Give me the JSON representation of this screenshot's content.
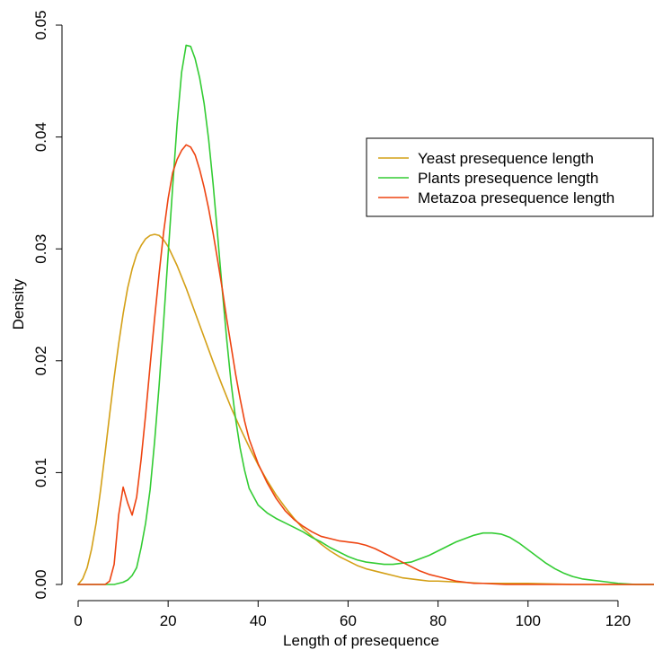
{
  "chart_data": {
    "type": "line",
    "title": "",
    "xlabel": "Length of presequence",
    "ylabel": "Density",
    "xlim": [
      0,
      128
    ],
    "ylim": [
      0,
      0.05
    ],
    "xticks": [
      "0",
      "20",
      "40",
      "60",
      "80",
      "100",
      "120"
    ],
    "yticks": [
      "0.00",
      "0.01",
      "0.02",
      "0.03",
      "0.04",
      "0.05"
    ],
    "grid": false,
    "legend_position": "top-right",
    "series": [
      {
        "name": "Yeast presequence length",
        "color": "#D4A017",
        "x": [
          0,
          1,
          2,
          3,
          4,
          5,
          6,
          7,
          8,
          9,
          10,
          11,
          12,
          13,
          14,
          15,
          16,
          17,
          18,
          19,
          20,
          22,
          24,
          26,
          28,
          30,
          32,
          34,
          36,
          38,
          40,
          42,
          44,
          46,
          48,
          50,
          52,
          54,
          56,
          58,
          60,
          62,
          64,
          66,
          68,
          70,
          72,
          74,
          76,
          78,
          80,
          85,
          90,
          95,
          100,
          110,
          120,
          128
        ],
        "y": [
          0.0,
          0.0005,
          0.0015,
          0.0032,
          0.0055,
          0.0085,
          0.0118,
          0.0152,
          0.0185,
          0.0215,
          0.0242,
          0.0265,
          0.0282,
          0.0295,
          0.0303,
          0.0309,
          0.0312,
          0.0313,
          0.0312,
          0.0308,
          0.0302,
          0.0285,
          0.0265,
          0.0243,
          0.0221,
          0.0199,
          0.0178,
          0.0158,
          0.014,
          0.0123,
          0.0107,
          0.0093,
          0.008,
          0.0069,
          0.0059,
          0.005,
          0.0043,
          0.0036,
          0.003,
          0.0025,
          0.0021,
          0.0017,
          0.0014,
          0.0012,
          0.001,
          0.0008,
          0.0006,
          0.0005,
          0.0004,
          0.0003,
          0.0003,
          0.0002,
          0.0001,
          0.0001,
          0.0001,
          0.0,
          0.0,
          0.0
        ]
      },
      {
        "name": "Plants presequence length",
        "color": "#33CC33",
        "x": [
          0,
          5,
          8,
          10,
          11,
          12,
          13,
          14,
          15,
          16,
          17,
          18,
          19,
          20,
          21,
          22,
          23,
          24,
          25,
          26,
          27,
          28,
          29,
          30,
          31,
          32,
          33,
          34,
          35,
          36,
          37,
          38,
          40,
          42,
          44,
          46,
          48,
          50,
          52,
          54,
          56,
          58,
          60,
          62,
          64,
          66,
          68,
          70,
          72,
          74,
          76,
          78,
          80,
          82,
          84,
          86,
          88,
          90,
          92,
          94,
          96,
          98,
          100,
          102,
          104,
          106,
          108,
          110,
          112,
          114,
          116,
          118,
          120,
          124,
          128
        ],
        "y": [
          0.0,
          0.0,
          0.0,
          0.0002,
          0.0004,
          0.0008,
          0.0015,
          0.0033,
          0.0055,
          0.0085,
          0.0128,
          0.0178,
          0.0235,
          0.0295,
          0.0355,
          0.0412,
          0.0458,
          0.0482,
          0.0481,
          0.047,
          0.0453,
          0.043,
          0.0398,
          0.0358,
          0.0312,
          0.0265,
          0.022,
          0.018,
          0.0148,
          0.0122,
          0.0102,
          0.0086,
          0.0071,
          0.0064,
          0.0059,
          0.0055,
          0.0051,
          0.0047,
          0.0042,
          0.0038,
          0.0033,
          0.0029,
          0.0025,
          0.0022,
          0.002,
          0.0019,
          0.0018,
          0.0018,
          0.0019,
          0.002,
          0.0023,
          0.0026,
          0.003,
          0.0034,
          0.0038,
          0.0041,
          0.0044,
          0.0046,
          0.0046,
          0.0045,
          0.0042,
          0.0037,
          0.0031,
          0.0025,
          0.0019,
          0.0014,
          0.001,
          0.0007,
          0.0005,
          0.0004,
          0.0003,
          0.0002,
          0.0001,
          0.0,
          0.0
        ]
      },
      {
        "name": "Metazoa presequence length",
        "color": "#EE4411",
        "x": [
          0,
          5,
          6,
          7,
          8,
          9,
          10,
          11,
          12,
          13,
          14,
          15,
          16,
          17,
          18,
          19,
          20,
          21,
          22,
          23,
          24,
          25,
          26,
          27,
          28,
          29,
          30,
          31,
          32,
          33,
          34,
          35,
          36,
          37,
          38,
          40,
          42,
          44,
          46,
          48,
          50,
          52,
          54,
          56,
          58,
          60,
          62,
          64,
          66,
          68,
          70,
          72,
          74,
          76,
          78,
          80,
          82,
          84,
          86,
          88,
          90,
          95,
          100,
          110,
          120,
          128
        ],
        "y": [
          0.0,
          0.0,
          0.0,
          0.0003,
          0.0018,
          0.0062,
          0.0087,
          0.0073,
          0.0062,
          0.0078,
          0.0112,
          0.0152,
          0.0196,
          0.0238,
          0.0278,
          0.0315,
          0.0345,
          0.0368,
          0.038,
          0.0388,
          0.0393,
          0.0391,
          0.0384,
          0.0371,
          0.0355,
          0.0336,
          0.0314,
          0.029,
          0.0265,
          0.0238,
          0.0213,
          0.0188,
          0.0166,
          0.0146,
          0.013,
          0.0108,
          0.0091,
          0.0077,
          0.0066,
          0.0058,
          0.0052,
          0.0047,
          0.0043,
          0.0041,
          0.0039,
          0.0038,
          0.0037,
          0.0035,
          0.0032,
          0.0028,
          0.0024,
          0.002,
          0.0016,
          0.0012,
          0.0009,
          0.0007,
          0.0005,
          0.0003,
          0.0002,
          0.0001,
          0.0001,
          0.0,
          0.0,
          0.0,
          0.0,
          0.0
        ]
      }
    ]
  }
}
